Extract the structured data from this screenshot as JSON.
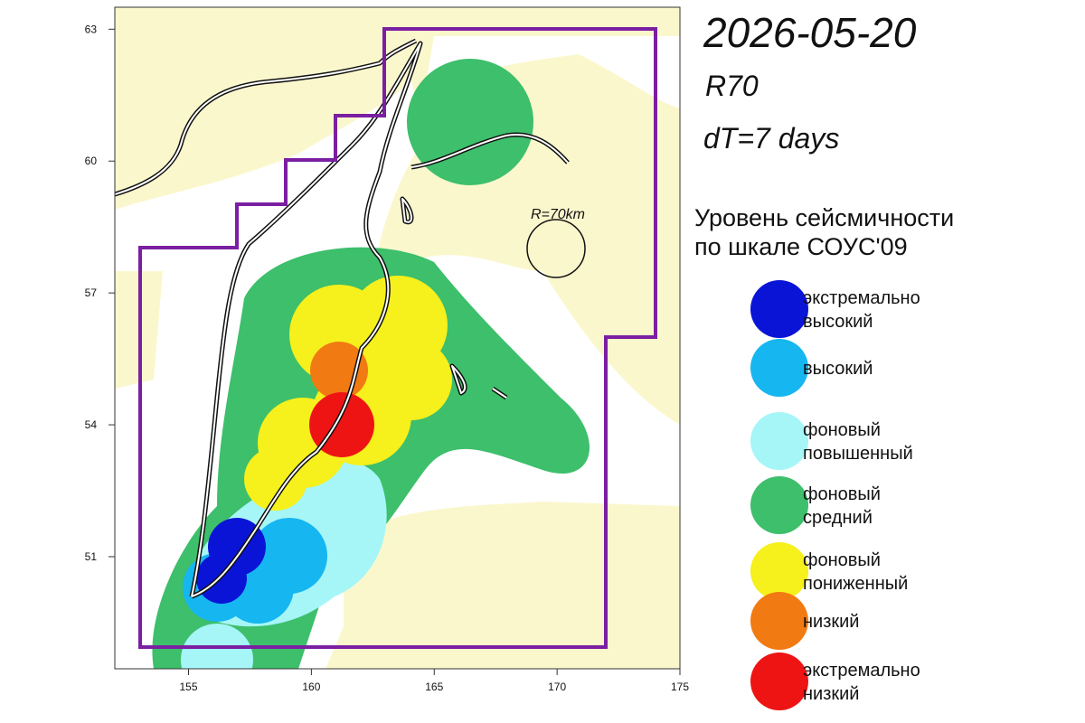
{
  "header": {
    "date": "2026-05-20",
    "model": "R70",
    "window": "dT=7 days"
  },
  "map": {
    "xlim": [
      152,
      175
    ],
    "ylim": [
      48.45,
      63.5
    ],
    "xticks": [
      155,
      160,
      165,
      170,
      175
    ],
    "yticks": [
      51,
      54,
      57,
      60,
      63
    ],
    "circle_label": "R=70km"
  },
  "legend": {
    "title_lines": [
      "Уровень сейсмичности",
      "по шкале СОУС'09"
    ],
    "items": [
      {
        "label_lines": [
          "экстремально",
          "высокий"
        ],
        "color": "#0a14d6"
      },
      {
        "label_lines": [
          "высокий"
        ],
        "color": "#16b6f0"
      },
      {
        "label_lines": [
          "фоновый",
          "повышенный"
        ],
        "color": "#a6f6f8"
      },
      {
        "label_lines": [
          "фоновый",
          "средний"
        ],
        "color": "#3dbf6b"
      },
      {
        "label_lines": [
          "фоновый",
          "пониженный"
        ],
        "color": "#f6f01c"
      },
      {
        "label_lines": [
          "низкий"
        ],
        "color": "#f27a12"
      },
      {
        "label_lines": [
          "экстремально",
          "низкий"
        ],
        "color": "#ee1414"
      }
    ]
  }
}
